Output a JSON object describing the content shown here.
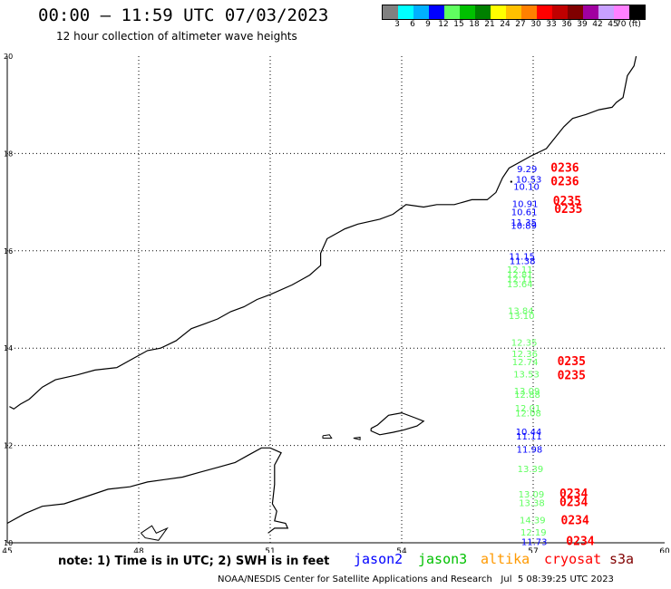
{
  "header": {
    "title": "00:00 – 11:59 UTC 07/03/2023",
    "subtitle": "12 hour collection of altimeter wave heights"
  },
  "colorbar": {
    "colors": [
      "#808080",
      "#00ffff",
      "#00b0ff",
      "#0000ff",
      "#60ff60",
      "#00c000",
      "#008000",
      "#ffff00",
      "#ffc000",
      "#ff8000",
      "#ff0000",
      "#c00000",
      "#800000",
      "#a000a0",
      "#c8a0ff",
      "#ff80ff",
      "#000000"
    ],
    "labels": [
      "3",
      "6",
      "9",
      "12",
      "15",
      "18",
      "21",
      "24",
      "27",
      "30",
      "33",
      "36",
      "39",
      "42",
      "45",
      "70 (ft)"
    ]
  },
  "axes": {
    "x_ticks": [
      "45",
      "48",
      "51",
      "54",
      "57",
      "60"
    ],
    "y_ticks": [
      "20",
      "18",
      "16",
      "14",
      "12",
      "10"
    ]
  },
  "observations": [
    {
      "lon": 56.63,
      "lat": 17.62,
      "text": "9.29",
      "sat": "jason2"
    },
    {
      "lon": 56.6,
      "lat": 17.4,
      "text": "10.53",
      "sat": "jason2"
    },
    {
      "lon": 56.55,
      "lat": 17.25,
      "text": "10.10",
      "sat": "jason2"
    },
    {
      "lon": 56.52,
      "lat": 16.9,
      "text": "10.91",
      "sat": "jason2"
    },
    {
      "lon": 56.5,
      "lat": 16.73,
      "text": "10.61",
      "sat": "jason2"
    },
    {
      "lon": 56.49,
      "lat": 16.52,
      "text": "11.35",
      "sat": "jason2"
    },
    {
      "lon": 56.49,
      "lat": 16.45,
      "text": "10.89",
      "sat": "jason2"
    },
    {
      "lon": 56.45,
      "lat": 15.82,
      "text": "11.15",
      "sat": "jason2"
    },
    {
      "lon": 56.46,
      "lat": 15.73,
      "text": "11.38",
      "sat": "jason2"
    },
    {
      "lon": 56.4,
      "lat": 15.55,
      "text": "12.11",
      "sat": "jason3"
    },
    {
      "lon": 56.4,
      "lat": 15.45,
      "text": "12.81",
      "sat": "jason3"
    },
    {
      "lon": 56.4,
      "lat": 15.35,
      "text": "12.11",
      "sat": "jason3"
    },
    {
      "lon": 56.4,
      "lat": 15.25,
      "text": "13.64",
      "sat": "jason3"
    },
    {
      "lon": 56.42,
      "lat": 14.7,
      "text": "13.84",
      "sat": "jason3"
    },
    {
      "lon": 56.44,
      "lat": 14.6,
      "text": "13.10",
      "sat": "jason3"
    },
    {
      "lon": 56.5,
      "lat": 14.05,
      "text": "12.35",
      "sat": "jason3"
    },
    {
      "lon": 56.51,
      "lat": 13.82,
      "text": "12.36",
      "sat": "jason3"
    },
    {
      "lon": 56.52,
      "lat": 13.65,
      "text": "12.74",
      "sat": "jason3"
    },
    {
      "lon": 56.55,
      "lat": 13.4,
      "text": "13.53",
      "sat": "jason3"
    },
    {
      "lon": 56.56,
      "lat": 13.05,
      "text": "13.09",
      "sat": "jason3"
    },
    {
      "lon": 56.57,
      "lat": 12.98,
      "text": "12.88",
      "sat": "jason3"
    },
    {
      "lon": 56.58,
      "lat": 12.7,
      "text": "12.01",
      "sat": "jason3"
    },
    {
      "lon": 56.59,
      "lat": 12.6,
      "text": "12.08",
      "sat": "jason3"
    },
    {
      "lon": 56.6,
      "lat": 12.22,
      "text": "10.44",
      "sat": "jason2"
    },
    {
      "lon": 56.61,
      "lat": 12.12,
      "text": "11.11",
      "sat": "jason2"
    },
    {
      "lon": 56.62,
      "lat": 11.85,
      "text": "11.98",
      "sat": "jason2"
    },
    {
      "lon": 56.64,
      "lat": 11.45,
      "text": "13.39",
      "sat": "jason3"
    },
    {
      "lon": 56.66,
      "lat": 10.93,
      "text": "13.09",
      "sat": "jason3"
    },
    {
      "lon": 56.67,
      "lat": 10.75,
      "text": "13.38",
      "sat": "jason3"
    },
    {
      "lon": 56.69,
      "lat": 10.4,
      "text": "14.39",
      "sat": "jason3"
    },
    {
      "lon": 56.71,
      "lat": 10.15,
      "text": "12.19",
      "sat": "jason3"
    },
    {
      "lon": 56.73,
      "lat": 9.95,
      "text": "11.73",
      "sat": "jason2"
    },
    {
      "lon": 57.4,
      "lat": 17.63,
      "text": "0236",
      "sat": "cryosat"
    },
    {
      "lon": 57.4,
      "lat": 17.35,
      "text": "0236",
      "sat": "cryosat"
    },
    {
      "lon": 57.45,
      "lat": 16.95,
      "text": "0235",
      "sat": "cryosat"
    },
    {
      "lon": 57.48,
      "lat": 16.78,
      "text": "0235",
      "sat": "cryosat"
    },
    {
      "lon": 57.55,
      "lat": 13.65,
      "text": "0235",
      "sat": "cryosat"
    },
    {
      "lon": 57.55,
      "lat": 13.36,
      "text": "0235",
      "sat": "cryosat"
    },
    {
      "lon": 57.6,
      "lat": 10.93,
      "text": "0234",
      "sat": "cryosat"
    },
    {
      "lon": 57.6,
      "lat": 10.75,
      "text": "0234",
      "sat": "cryosat"
    },
    {
      "lon": 57.63,
      "lat": 10.38,
      "text": "0234",
      "sat": "cryosat"
    },
    {
      "lon": 57.75,
      "lat": 9.95,
      "text": "0234",
      "sat": "cryosat"
    }
  ],
  "legend": {
    "note": "note: 1) Time is in UTC; 2) SWH is in feet",
    "jason2": {
      "label": "jason2",
      "color": "#0000ff"
    },
    "jason3": {
      "label": "jason3",
      "color": "#00c000"
    },
    "altika": {
      "label": "altika",
      "color": "#ff9900"
    },
    "cryosat": {
      "label": "cryosat",
      "color": "#ff0000"
    },
    "s3a": {
      "label": "s3a",
      "color": "#800000"
    },
    "obs_color_jason3": "#60ff60"
  },
  "footer": {
    "credit": "NOAA/NESDIS Center for Satellite Applications and Research",
    "timestamp": "Jul  5 08:39:25 UTC 2023"
  }
}
